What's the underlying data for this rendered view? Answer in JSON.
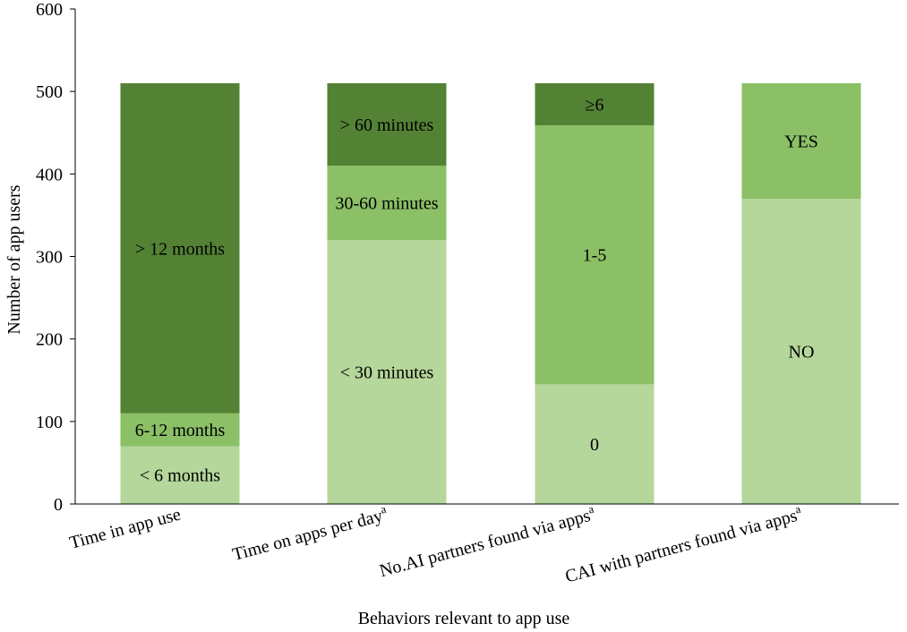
{
  "chart_data": {
    "type": "bar",
    "stacked": true,
    "xlabel": "Behaviors relevant to app use",
    "ylabel": "Number of app users",
    "ylim": [
      0,
      600
    ],
    "yticks": [
      0,
      100,
      200,
      300,
      400,
      500,
      600
    ],
    "grid": false,
    "legend": "none",
    "categories": [
      {
        "label": "Time in app use",
        "sup": ""
      },
      {
        "label": "Time on apps per day",
        "sup": "a"
      },
      {
        "label": "No.AI partners found via apps",
        "sup": "a"
      },
      {
        "label": "CAI with partners found via apps",
        "sup": "a"
      }
    ],
    "bars": [
      {
        "segments": [
          {
            "label": "< 6 months",
            "value": 70,
            "color": "#b5d79b"
          },
          {
            "label": "6-12 months",
            "value": 40,
            "color": "#8bc066"
          },
          {
            "label": "> 12 months",
            "value": 400,
            "color": "#548235"
          }
        ]
      },
      {
        "segments": [
          {
            "label": "< 30 minutes",
            "value": 320,
            "color": "#b5d79b"
          },
          {
            "label": "30-60 minutes",
            "value": 90,
            "color": "#8bc066"
          },
          {
            "label": "> 60 minutes",
            "value": 100,
            "color": "#548235"
          }
        ]
      },
      {
        "segments": [
          {
            "label": "0",
            "value": 145,
            "color": "#b5d79b"
          },
          {
            "label": "1-5",
            "value": 314,
            "color": "#8bc066"
          },
          {
            "label": "≥6",
            "value": 51,
            "color": "#548235"
          }
        ]
      },
      {
        "segments": [
          {
            "label": "NO",
            "value": 370,
            "color": "#b5d79b"
          },
          {
            "label": "YES",
            "value": 140,
            "color": "#8bc066"
          }
        ]
      }
    ],
    "colors": {
      "light": "#b5d79b",
      "medium": "#8bc066",
      "dark": "#548235",
      "axis": "#000000"
    }
  }
}
